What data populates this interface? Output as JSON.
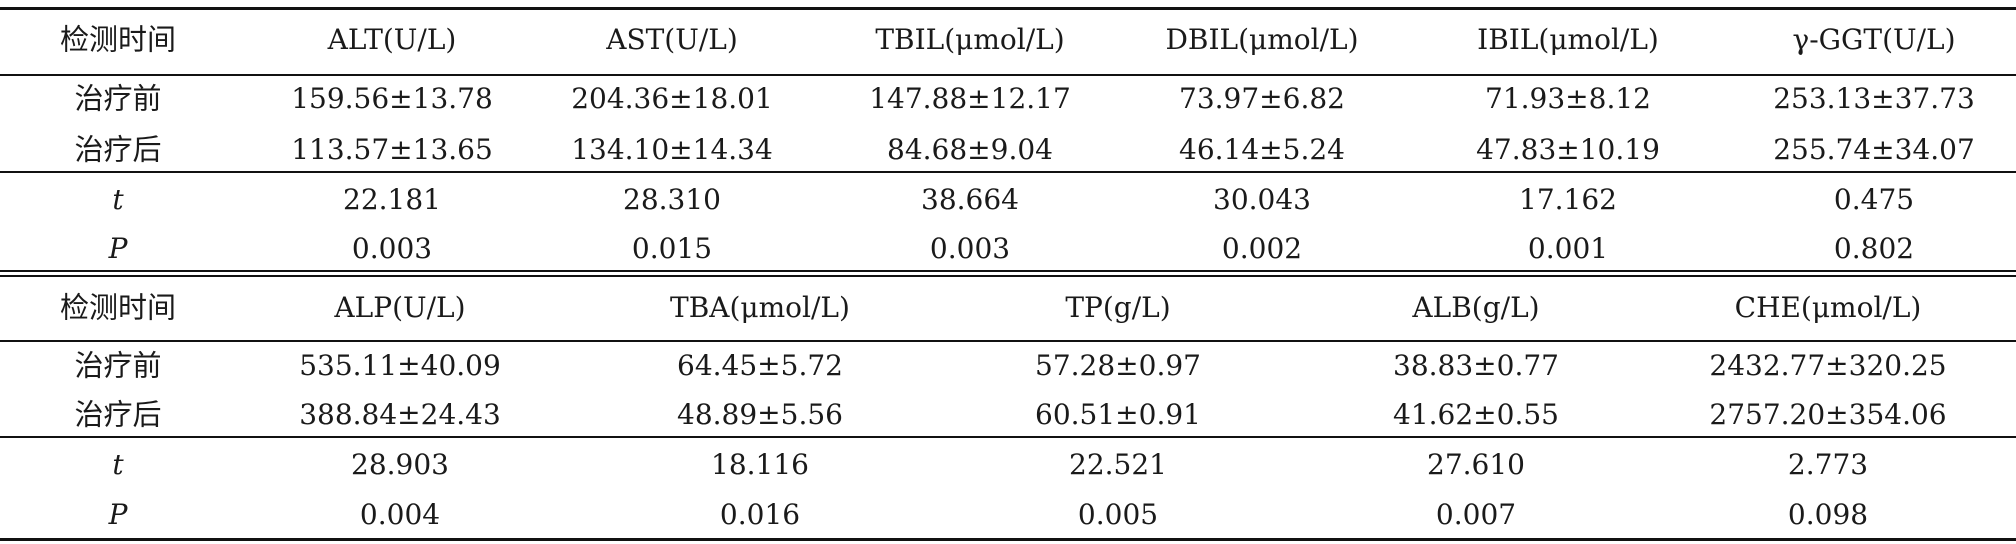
{
  "section1": {
    "header": [
      "检测时间",
      "ALT(U/L)",
      "AST(U/L)",
      "TBIL(μmol/L)",
      "DBIL(μmol/L)",
      "IBIL(μmol/L)",
      "γ-GGT(U/L)"
    ],
    "rows": [
      [
        "治疗前",
        "159.56±13.78",
        "204.36±18.01",
        "147.88±12.17",
        "73.97±6.82",
        "71.93±8.12",
        "253.13±37.73"
      ],
      [
        "治疗后",
        "113.57±13.65",
        "134.10±14.34",
        "84.68±9.04",
        "46.14±5.24",
        "47.83±10.19",
        "255.74±34.07"
      ],
      [
        "t",
        "22.181",
        "28.310",
        "38.664",
        "30.043",
        "17.162",
        "0.475"
      ],
      [
        "P",
        "0.003",
        "0.015",
        "0.003",
        "0.002",
        "0.001",
        "0.802"
      ]
    ]
  },
  "section2": {
    "header": [
      "检测时间",
      "ALP(U/L)",
      "TBA(μmol/L)",
      "TP(g/L)",
      "ALB(g/L)",
      "CHE(μmol/L)"
    ],
    "rows": [
      [
        "治疗前",
        "535.11±40.09",
        "64.45±5.72",
        "57.28±0.97",
        "38.83±0.77",
        "2432.77±320.25"
      ],
      [
        "治疗后",
        "388.84±24.43",
        "48.89±5.56",
        "60.51±0.91",
        "41.62±0.55",
        "2757.20±354.06"
      ],
      [
        "t",
        "28.903",
        "18.116",
        "22.521",
        "27.610",
        "2.773"
      ],
      [
        "P",
        "0.004",
        "0.016",
        "0.005",
        "0.007",
        "0.098"
      ]
    ]
  }
}
